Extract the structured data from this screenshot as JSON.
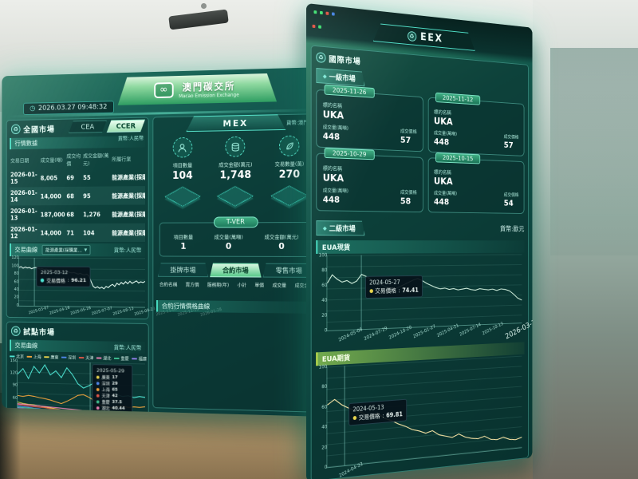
{
  "meta": {
    "timestamp": "2026.03.27 09:48:32"
  },
  "brand": {
    "logo_mark": "∞",
    "title_zh": "澳門碳交所",
    "title_en": "Macao Emission Exchange"
  },
  "left": {
    "national": {
      "title": "全國市場",
      "tabs": [
        {
          "label": "CEA"
        },
        {
          "label": "CCER"
        }
      ],
      "currency": "貨幣:人民幣",
      "quotes_section": "行情數據",
      "table": {
        "headers": [
          "交易日期",
          "成交量(噸)",
          "成交均價",
          "成交金額(萬元)",
          "所屬行業"
        ],
        "rows": [
          {
            "date": "2026-01-15",
            "volume": "8,005",
            "price": "69",
            "amount": "55",
            "industry": "能源產業(採購業…"
          },
          {
            "date": "2026-01-14",
            "volume": "14,000",
            "price": "68",
            "amount": "95",
            "industry": "能源產業(採購業…"
          },
          {
            "date": "2026-01-13",
            "volume": "187,000",
            "price": "68",
            "amount": "1,276",
            "industry": "能源產業(採購業…"
          },
          {
            "date": "2026-01-12",
            "volume": "14,000",
            "price": "71",
            "amount": "104",
            "industry": "能源產業(採購業…"
          }
        ]
      },
      "curve": {
        "title": "交易曲線",
        "dropdown": "能源產業(採購業…",
        "currency": "貨幣:人民幣",
        "tooltip": {
          "date": "2025-03-12",
          "label": "交易價格",
          "value": "96.21"
        },
        "yticks": [
          "120",
          "100",
          "80",
          "60",
          "40",
          "20",
          "0"
        ],
        "xticks": [
          "2025-03-07",
          "2025-04-16",
          "2025-05-28",
          "2025-07-07",
          "2025-08-13",
          "2025-09-23",
          "2025-11-06",
          "2025-12-15",
          "2026-01-28"
        ]
      }
    },
    "pilot": {
      "title": "試點市場",
      "section": "交易曲線",
      "currency": "貨幣:人民幣",
      "legend": [
        {
          "name": "北京",
          "color": "#4de3d2"
        },
        {
          "name": "上海",
          "color": "#f0a33c"
        },
        {
          "name": "廣東",
          "color": "#e8d44d"
        },
        {
          "name": "深圳",
          "color": "#4f86e8"
        },
        {
          "name": "天津",
          "color": "#e05648"
        },
        {
          "name": "湖北",
          "color": "#e87fb1"
        },
        {
          "name": "重慶",
          "color": "#3dbd8e"
        },
        {
          "name": "福建",
          "color": "#8f7fe8"
        }
      ],
      "tooltip": {
        "date": "2025-05-29",
        "items": [
          {
            "name": "廣東",
            "value": "17",
            "color": "#e8d44d"
          },
          {
            "name": "深圳",
            "value": "29",
            "color": "#4f86e8"
          },
          {
            "name": "上海",
            "value": "65",
            "color": "#f0a33c"
          },
          {
            "name": "天津",
            "value": "42",
            "color": "#e05648"
          },
          {
            "name": "重慶",
            "value": "37.5",
            "color": "#3dbd8e"
          },
          {
            "name": "湖北",
            "value": "40.44",
            "color": "#e87fb1"
          },
          {
            "name": "北京",
            "value": "115.43",
            "color": "#4de3d2"
          },
          {
            "name": "福建",
            "value": "41.01",
            "color": "#8f7fe8"
          }
        ]
      },
      "yticks": [
        "150",
        "120",
        "90",
        "60",
        "30",
        "0"
      ],
      "xticks": [
        "2024-05-06",
        "2024-07-24",
        "2024-10-02",
        "2025-01-09",
        "2025-04-08",
        "2025-07-08",
        "2025-10-08",
        "2025-12-16",
        "2026-03-20"
      ]
    }
  },
  "center": {
    "panel_title": "MEX",
    "currency": "貨幣:澳門幣",
    "stats": [
      {
        "icon": "user-icon",
        "label": "項目數量",
        "value": "104"
      },
      {
        "icon": "coins-icon",
        "label": "成交金額(萬元)",
        "value": "1,748"
      },
      {
        "icon": "leaf-icon",
        "label": "交易數量(萬)",
        "value": "270"
      }
    ],
    "tver": {
      "title": "T-VER",
      "stats": [
        {
          "label": "項目數量",
          "value": "1"
        },
        {
          "label": "成交量(萬噸)",
          "value": "0"
        },
        {
          "label": "成交金額(萬元)",
          "value": "0"
        }
      ]
    },
    "market_tabs": [
      {
        "label": "掛牌市場"
      },
      {
        "label": "合約市場"
      },
      {
        "label": "零售市場"
      }
    ],
    "table_headers": [
      "合約名稱",
      "賣方價",
      "服務期(年)",
      "小計",
      "單價",
      "成交量",
      "成交金額"
    ],
    "curve_title": "合約行情價格曲線"
  },
  "right": {
    "header": "EEX",
    "intl_title": "國際市場",
    "primary": {
      "title": "一級市場",
      "name_label": "標的名稱",
      "vol_label": "成交量(萬噸)",
      "price_label": "成交價格",
      "cards": [
        {
          "date": "2025-11-26",
          "name": "UKA",
          "vol": "448",
          "price": "57"
        },
        {
          "date": "2025-11-12",
          "name": "UKA",
          "vol": "448",
          "price": "57"
        },
        {
          "date": "2025-10-29",
          "name": "UKA",
          "vol": "448",
          "price": "58"
        },
        {
          "date": "2025-10-15",
          "name": "UKA",
          "vol": "448",
          "price": "54"
        }
      ]
    },
    "secondary": {
      "title": "二級市場",
      "currency": "貨幣:歐元",
      "spot": {
        "title": "EUA現貨",
        "tooltip": {
          "date": "2024-05-27",
          "label": "交易價格",
          "value": "74.41"
        },
        "yticks": [
          "100",
          "80",
          "60",
          "40",
          "20",
          "0"
        ],
        "xticks": [
          "2024-05-06",
          "2024-07-29",
          "2024-10-20",
          "2025-01-27",
          "2025-04-21",
          "2025-07-14",
          "2025-10-13",
          "2026-03-16"
        ]
      },
      "futures": {
        "title": "EUA期貨",
        "tooltip": {
          "date": "2024-05-13",
          "label": "交易價格",
          "value": "69.81"
        },
        "yticks": [
          "100",
          "80",
          "60",
          "40",
          "20",
          "0"
        ],
        "xticks": [
          "2024-04-22"
        ]
      }
    }
  },
  "chart_data": {
    "national": {
      "type": "line",
      "title": "交易曲線 (全國市場 CCER)",
      "ylim": [
        0,
        120
      ],
      "color": "#e9fff6",
      "values": [
        96,
        98,
        94,
        97,
        95,
        96,
        93,
        95,
        96,
        94,
        92,
        93,
        91,
        92,
        90,
        91,
        89,
        88,
        89,
        87,
        88,
        86,
        85,
        86,
        84,
        83,
        84,
        82,
        80,
        82,
        79,
        78,
        80,
        76,
        62,
        50,
        46,
        49,
        45,
        48,
        44,
        50,
        47,
        52,
        55,
        50,
        58,
        54,
        60,
        56,
        62,
        57,
        63,
        58,
        61,
        64,
        59,
        62,
        60,
        63
      ]
    },
    "pilot": {
      "type": "line",
      "title": "交易曲線 (試點市場)",
      "ylim": [
        0,
        150
      ],
      "series": [
        {
          "name": "北京",
          "color": "#4de3d2",
          "values": [
            118,
            132,
            108,
            138,
            122,
            142,
            118,
            128,
            112,
            136,
            120,
            98,
            88,
            94,
            102,
            110,
            114,
            112,
            74,
            70,
            72,
            68,
            71,
            69
          ]
        },
        {
          "name": "上海",
          "color": "#f0a33c",
          "values": [
            66,
            64,
            67,
            65,
            62,
            60,
            57,
            53,
            49,
            55,
            62,
            70,
            72,
            66,
            58,
            48,
            44,
            42,
            45,
            47,
            44,
            46,
            45,
            47
          ]
        },
        {
          "name": "廣東",
          "color": "#e8d44d",
          "values": [
            50,
            47,
            45,
            44,
            42,
            40,
            38,
            36,
            34,
            32,
            30,
            28,
            26,
            25,
            23,
            22,
            21,
            20,
            19,
            18,
            17,
            17,
            18,
            17
          ]
        },
        {
          "name": "深圳",
          "color": "#4f86e8",
          "values": [
            41,
            39,
            38,
            36,
            35,
            33,
            32,
            30,
            29,
            28,
            26,
            25,
            24,
            23,
            22,
            21,
            20,
            19,
            18,
            17,
            16,
            15,
            14,
            14
          ]
        },
        {
          "name": "天津",
          "color": "#e05648",
          "values": [
            44,
            43,
            41,
            40,
            39,
            38,
            36,
            35,
            34,
            33,
            31,
            30,
            29,
            28,
            27,
            26,
            25,
            24,
            23,
            22,
            21,
            20,
            19,
            19
          ]
        },
        {
          "name": "湖北",
          "color": "#e87fb1",
          "values": [
            46,
            45,
            44,
            43,
            42,
            41,
            40,
            39,
            38,
            37,
            36,
            35,
            34,
            33,
            32,
            31,
            30,
            29,
            28,
            27,
            26,
            25,
            24,
            24
          ]
        },
        {
          "name": "重慶",
          "color": "#3dbd8e",
          "values": [
            38,
            37,
            36,
            35,
            34,
            33,
            32,
            31,
            30,
            29,
            28,
            27,
            26,
            25,
            24,
            23,
            22,
            21,
            20,
            19,
            18,
            17,
            16,
            16
          ]
        },
        {
          "name": "福建",
          "color": "#8f7fe8",
          "values": [
            36,
            35,
            34,
            33,
            32,
            31,
            30,
            29,
            28,
            27,
            26,
            25,
            24,
            23,
            22,
            21,
            20,
            19,
            18,
            17,
            16,
            15,
            14,
            14
          ]
        }
      ]
    },
    "eua_spot": {
      "type": "line",
      "title": "EUA現貨",
      "ylim": [
        0,
        100
      ],
      "color": "#d8f5e3",
      "values": [
        63,
        74,
        68,
        64,
        66,
        62,
        65,
        74,
        71,
        67,
        63,
        60,
        57,
        55,
        53,
        56,
        59,
        62,
        65,
        67,
        64,
        60,
        57,
        54,
        52,
        53,
        51,
        52,
        50,
        51,
        52,
        50,
        49,
        51,
        50,
        49,
        50,
        48,
        50,
        49,
        47,
        42,
        36,
        33
      ]
    },
    "eua_futures": {
      "type": "line",
      "title": "EUA期貨",
      "ylim": [
        0,
        100
      ],
      "color": "#ffe9a8",
      "values": [
        62,
        67,
        61,
        57,
        54,
        51,
        47,
        50,
        44,
        41,
        37,
        34,
        30,
        28,
        25,
        27,
        22,
        20,
        18,
        21,
        17,
        15,
        14,
        16,
        12,
        11,
        13,
        10,
        9,
        11
      ]
    }
  }
}
